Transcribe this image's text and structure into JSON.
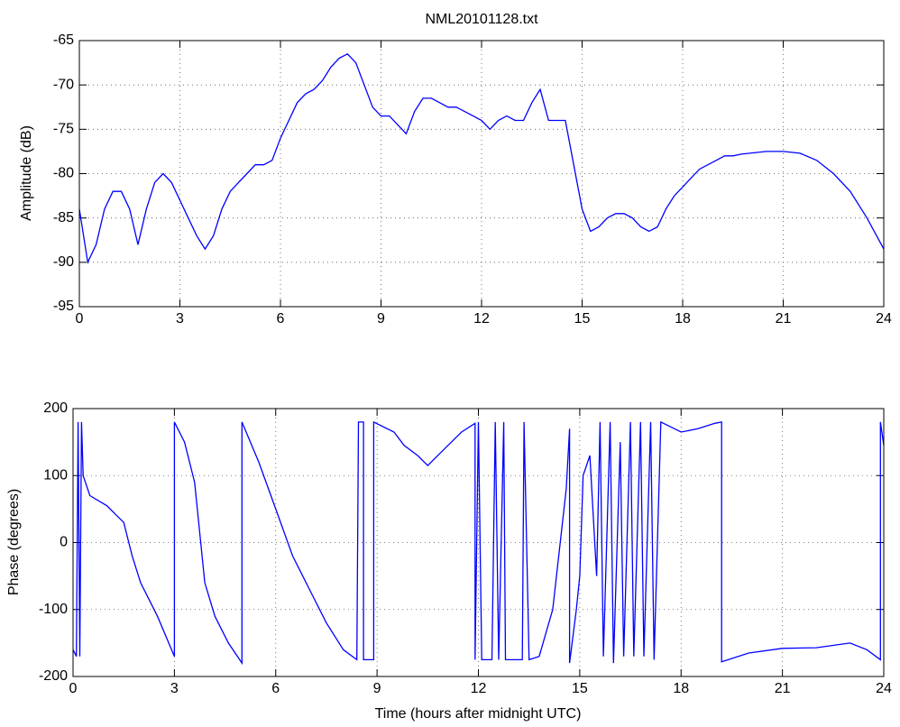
{
  "chart_data": [
    {
      "type": "line",
      "title": "NML20101128.txt",
      "ylabel": "Amplitude (dB)",
      "grid": true,
      "xlim": [
        0,
        24
      ],
      "xticks": [
        0,
        3,
        6,
        9,
        12,
        15,
        18,
        21,
        24
      ],
      "ylim": [
        -95,
        -65
      ],
      "yticks": [
        -95,
        -90,
        -85,
        -80,
        -75,
        -70,
        -65
      ],
      "x": [
        0,
        0.25,
        0.5,
        0.75,
        1,
        1.25,
        1.5,
        1.75,
        2,
        2.25,
        2.5,
        2.75,
        3,
        3.25,
        3.5,
        3.75,
        4,
        4.25,
        4.5,
        4.75,
        5,
        5.25,
        5.5,
        5.75,
        6,
        6.25,
        6.5,
        6.75,
        7,
        7.25,
        7.5,
        7.75,
        8,
        8.25,
        8.5,
        8.75,
        9,
        9.25,
        9.5,
        9.75,
        10,
        10.25,
        10.5,
        10.75,
        11,
        11.25,
        11.5,
        11.75,
        12,
        12.25,
        12.5,
        12.75,
        13,
        13.25,
        13.5,
        13.75,
        14,
        14.25,
        14.5,
        14.75,
        15,
        15.25,
        15.5,
        15.75,
        16,
        16.25,
        16.5,
        16.75,
        17,
        17.25,
        17.5,
        17.75,
        18,
        18.25,
        18.5,
        18.75,
        19,
        19.25,
        19.5,
        19.75,
        20,
        20.5,
        21,
        21.5,
        22,
        22.5,
        23,
        23.5,
        24
      ],
      "series": [
        {
          "color": "#0000ff",
          "values": [
            -84,
            -90,
            -88,
            -84,
            -82,
            -82,
            -84,
            -88,
            -84,
            -81,
            -80,
            -81,
            -83,
            -85,
            -87,
            -88.5,
            -87,
            -84,
            -82,
            -81,
            -80,
            -79,
            -79,
            -78.5,
            -76,
            -74,
            -72,
            -71,
            -70.5,
            -69.5,
            -68,
            -67,
            -66.5,
            -67.5,
            -70,
            -72.5,
            -73.5,
            -73.5,
            -74.5,
            -75.5,
            -73,
            -71.5,
            -71.5,
            -72,
            -72.5,
            -72.5,
            -73,
            -73.5,
            -74,
            -75,
            -74,
            -73.5,
            -74,
            -74,
            -72,
            -70.5,
            -74,
            -74,
            -74,
            -79,
            -84,
            -86.5,
            -86,
            -85,
            -84.5,
            -84.5,
            -85,
            -86,
            -86.5,
            -86,
            -84,
            -82.5,
            -81.5,
            -80.5,
            -79.5,
            -79,
            -78.5,
            -78,
            -78,
            -77.8,
            -77.7,
            -77.5,
            -77.5,
            -77.7,
            -78.5,
            -80,
            -82,
            -85,
            -88.5
          ]
        }
      ]
    },
    {
      "type": "line",
      "xlabel": "Time (hours after midnight UTC)",
      "ylabel": "Phase (degrees)",
      "grid": true,
      "xlim": [
        0,
        24
      ],
      "xticks": [
        0,
        3,
        6,
        9,
        12,
        15,
        18,
        21,
        24
      ],
      "ylim": [
        -200,
        200
      ],
      "yticks": [
        -200,
        -100,
        0,
        100,
        200
      ],
      "x": [
        0,
        0.1,
        0.15,
        0.2,
        0.25,
        0.3,
        0.5,
        1,
        1.5,
        1.75,
        2,
        2.5,
        3,
        3,
        3.3,
        3.6,
        3.9,
        4.2,
        4.6,
        5,
        5,
        5.5,
        6,
        6.5,
        7,
        7.5,
        8,
        8.4,
        8.45,
        8.6,
        8.6,
        8.9,
        8.9,
        9.5,
        9.8,
        10.2,
        10.5,
        11,
        11.5,
        11.9,
        11.9,
        12,
        12.1,
        12.4,
        12.5,
        12.6,
        12.75,
        12.8,
        13.3,
        13.35,
        13.5,
        13.8,
        14.2,
        14.6,
        14.7,
        14.7,
        14.9,
        15,
        15.1,
        15.3,
        15.5,
        15.6,
        15.7,
        15.9,
        16,
        16.2,
        16.3,
        16.5,
        16.6,
        16.8,
        16.9,
        17.1,
        17.2,
        17.4,
        17.6,
        18,
        18.5,
        19,
        19.2,
        19.2,
        20,
        21,
        22,
        23,
        23.5,
        23.9,
        23.9,
        24
      ],
      "series": [
        {
          "color": "#0000ff",
          "values": [
            -160,
            -170,
            180,
            -170,
            180,
            100,
            70,
            55,
            30,
            -20,
            -60,
            -110,
            -170,
            180,
            150,
            90,
            -60,
            -110,
            -150,
            -180,
            180,
            120,
            50,
            -20,
            -70,
            -120,
            -160,
            -175,
            180,
            180,
            -175,
            -175,
            180,
            165,
            145,
            130,
            115,
            140,
            165,
            178,
            -175,
            180,
            -175,
            -175,
            180,
            -175,
            180,
            -175,
            -175,
            180,
            -175,
            -170,
            -100,
            80,
            170,
            -180,
            -100,
            -50,
            100,
            130,
            -50,
            180,
            -170,
            180,
            -180,
            150,
            -170,
            180,
            -170,
            180,
            -170,
            180,
            -175,
            180,
            175,
            165,
            170,
            178,
            180,
            -178,
            -165,
            -158,
            -157,
            -150,
            -160,
            -175,
            180,
            145
          ]
        }
      ]
    }
  ]
}
